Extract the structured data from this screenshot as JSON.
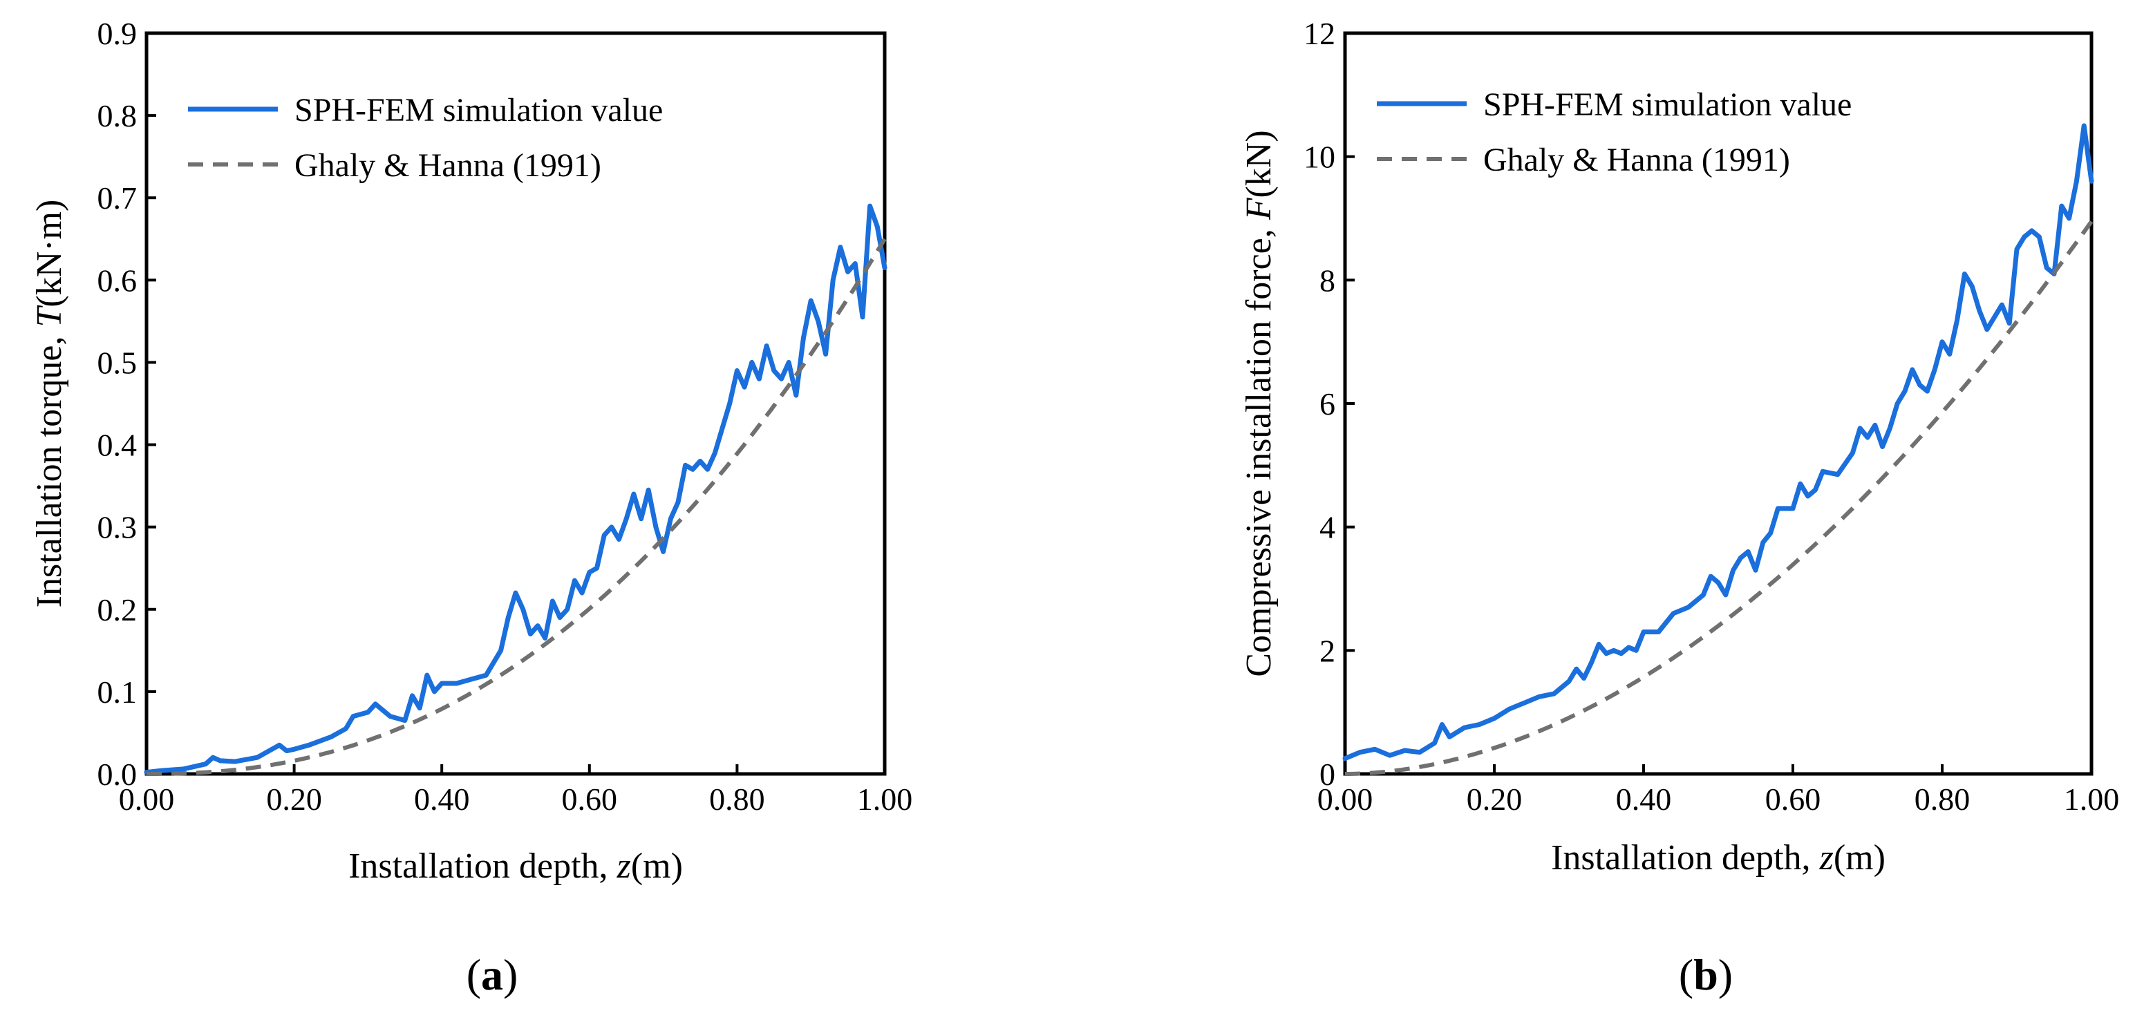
{
  "colors": {
    "simulation": "#1a6fdc",
    "reference": "#707070"
  },
  "chart_data": [
    {
      "type": "line",
      "panel_label": "a",
      "xlabel_text": "Installation depth, ",
      "xlabel_var": "z",
      "xlabel_unit": "(m)",
      "ylabel_text": "Installation torque, ",
      "ylabel_var": "T",
      "ylabel_unit": "(kN·m)",
      "xlim": [
        0,
        1
      ],
      "ylim": [
        0,
        0.9
      ],
      "xticks": [
        0,
        0.2,
        0.4,
        0.6,
        0.8,
        1.0
      ],
      "xtick_labels": [
        "0.00",
        "0.20",
        "0.40",
        "0.60",
        "0.80",
        "1.00"
      ],
      "yticks": [
        0,
        0.1,
        0.2,
        0.3,
        0.4,
        0.5,
        0.6,
        0.7,
        0.8,
        0.9
      ],
      "ytick_labels": [
        "0.0",
        "0.1",
        "0.2",
        "0.3",
        "0.4",
        "0.5",
        "0.6",
        "0.7",
        "0.8",
        "0.9"
      ],
      "legend_position": "top-left",
      "series": [
        {
          "name": "SPH-FEM simulation value",
          "style": "solid",
          "x": [
            0,
            0.02,
            0.05,
            0.08,
            0.09,
            0.1,
            0.12,
            0.15,
            0.18,
            0.19,
            0.2,
            0.22,
            0.25,
            0.27,
            0.28,
            0.3,
            0.31,
            0.33,
            0.35,
            0.36,
            0.37,
            0.38,
            0.39,
            0.4,
            0.42,
            0.44,
            0.46,
            0.48,
            0.49,
            0.5,
            0.51,
            0.52,
            0.53,
            0.54,
            0.55,
            0.56,
            0.57,
            0.58,
            0.59,
            0.6,
            0.61,
            0.62,
            0.63,
            0.64,
            0.65,
            0.66,
            0.67,
            0.68,
            0.69,
            0.7,
            0.71,
            0.72,
            0.73,
            0.74,
            0.75,
            0.76,
            0.77,
            0.78,
            0.79,
            0.8,
            0.81,
            0.82,
            0.83,
            0.84,
            0.85,
            0.86,
            0.87,
            0.88,
            0.89,
            0.9,
            0.91,
            0.92,
            0.93,
            0.94,
            0.95,
            0.96,
            0.97,
            0.98,
            0.99,
            1.0
          ],
          "y": [
            0.002,
            0.004,
            0.006,
            0.012,
            0.02,
            0.016,
            0.015,
            0.02,
            0.035,
            0.028,
            0.03,
            0.035,
            0.045,
            0.055,
            0.07,
            0.075,
            0.085,
            0.07,
            0.065,
            0.095,
            0.08,
            0.12,
            0.1,
            0.11,
            0.11,
            0.115,
            0.12,
            0.15,
            0.19,
            0.22,
            0.2,
            0.17,
            0.18,
            0.165,
            0.21,
            0.19,
            0.2,
            0.235,
            0.22,
            0.245,
            0.25,
            0.29,
            0.3,
            0.285,
            0.31,
            0.34,
            0.31,
            0.345,
            0.3,
            0.27,
            0.31,
            0.33,
            0.375,
            0.37,
            0.38,
            0.37,
            0.39,
            0.42,
            0.45,
            0.49,
            0.47,
            0.5,
            0.48,
            0.52,
            0.49,
            0.48,
            0.5,
            0.46,
            0.53,
            0.575,
            0.55,
            0.51,
            0.6,
            0.64,
            0.61,
            0.62,
            0.555,
            0.69,
            0.665,
            0.615
          ]
        },
        {
          "name": "Ghaly & Hanna (1991)",
          "style": "dashed",
          "fn": "power",
          "coef": 0.65,
          "exp": 2.3
        }
      ]
    },
    {
      "type": "line",
      "panel_label": "b",
      "xlabel_text": "Installation depth, ",
      "xlabel_var": "z",
      "xlabel_unit": "(m)",
      "ylabel_text": "Compressive installation force, ",
      "ylabel_var": "F",
      "ylabel_unit": "(kN)",
      "xlim": [
        0,
        1
      ],
      "ylim": [
        0,
        12
      ],
      "xticks": [
        0,
        0.2,
        0.4,
        0.6,
        0.8,
        1.0
      ],
      "xtick_labels": [
        "0.00",
        "0.20",
        "0.40",
        "0.60",
        "0.80",
        "1.00"
      ],
      "yticks": [
        0,
        2,
        4,
        6,
        8,
        10,
        12
      ],
      "ytick_labels": [
        "0",
        "2",
        "4",
        "6",
        "8",
        "10",
        "12"
      ],
      "legend_position": "top-left",
      "series": [
        {
          "name": "SPH-FEM simulation value",
          "style": "solid",
          "x": [
            0,
            0.02,
            0.04,
            0.06,
            0.08,
            0.1,
            0.12,
            0.13,
            0.14,
            0.16,
            0.18,
            0.2,
            0.22,
            0.24,
            0.26,
            0.28,
            0.3,
            0.31,
            0.32,
            0.33,
            0.34,
            0.35,
            0.36,
            0.37,
            0.38,
            0.39,
            0.4,
            0.42,
            0.44,
            0.46,
            0.48,
            0.49,
            0.5,
            0.51,
            0.52,
            0.53,
            0.54,
            0.55,
            0.56,
            0.57,
            0.58,
            0.6,
            0.61,
            0.62,
            0.63,
            0.64,
            0.66,
            0.68,
            0.69,
            0.7,
            0.71,
            0.72,
            0.73,
            0.74,
            0.75,
            0.76,
            0.77,
            0.78,
            0.79,
            0.8,
            0.81,
            0.82,
            0.83,
            0.84,
            0.85,
            0.86,
            0.87,
            0.88,
            0.89,
            0.9,
            0.91,
            0.92,
            0.93,
            0.94,
            0.95,
            0.96,
            0.97,
            0.98,
            0.99,
            1.0
          ],
          "y": [
            0.25,
            0.35,
            0.4,
            0.3,
            0.38,
            0.35,
            0.5,
            0.8,
            0.6,
            0.75,
            0.8,
            0.9,
            1.05,
            1.15,
            1.25,
            1.3,
            1.5,
            1.7,
            1.55,
            1.8,
            2.1,
            1.95,
            2.0,
            1.95,
            2.05,
            2.0,
            2.3,
            2.3,
            2.6,
            2.7,
            2.9,
            3.2,
            3.1,
            2.9,
            3.3,
            3.5,
            3.6,
            3.3,
            3.75,
            3.9,
            4.3,
            4.3,
            4.7,
            4.5,
            4.6,
            4.9,
            4.85,
            5.2,
            5.6,
            5.45,
            5.65,
            5.3,
            5.6,
            6.0,
            6.2,
            6.55,
            6.3,
            6.2,
            6.55,
            7.0,
            6.8,
            7.35,
            8.1,
            7.9,
            7.5,
            7.2,
            7.4,
            7.6,
            7.3,
            8.5,
            8.7,
            8.8,
            8.7,
            8.2,
            8.1,
            9.2,
            9.0,
            9.6,
            10.5,
            9.6
          ]
        },
        {
          "name": "Ghaly & Hanna (1991)",
          "style": "dashed",
          "fn": "power",
          "coef": 8.95,
          "exp": 1.9
        }
      ]
    }
  ]
}
